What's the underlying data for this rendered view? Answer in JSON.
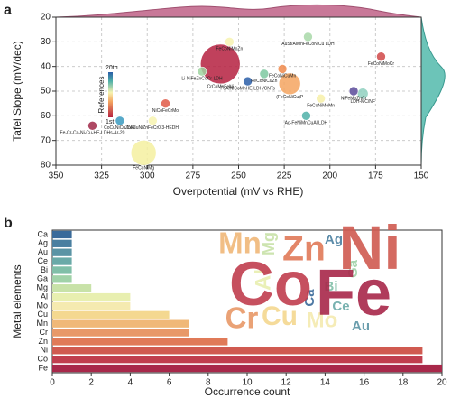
{
  "chart_data": [
    {
      "type": "bubble",
      "panel_label": "a",
      "x_label": "Overpotential (mV vs RHE)",
      "y_label": "Tafel Slope (mV/dec)",
      "xlim": [
        350,
        150
      ],
      "xticks": [
        350,
        325,
        300,
        275,
        250,
        225,
        200,
        175,
        150
      ],
      "ylim": [
        80,
        20
      ],
      "yticks": [
        20,
        30,
        40,
        50,
        60,
        70,
        80
      ],
      "grid": true,
      "colorbar": {
        "label": "References",
        "ticks": [
          "20th",
          "1st"
        ]
      },
      "x": [
        255,
        212,
        172,
        260,
        270,
        236,
        226,
        245,
        222,
        205,
        187,
        182,
        213,
        290,
        297,
        315,
        330,
        302
      ],
      "values": [
        30,
        28,
        36,
        39,
        42,
        43,
        41,
        46,
        47,
        53,
        50,
        51,
        60,
        55,
        62,
        62,
        64,
        75
      ],
      "sizes": [
        5,
        5,
        5,
        22,
        5,
        5,
        5,
        5,
        12,
        5,
        5,
        6,
        5,
        5,
        5,
        5,
        5,
        14
      ],
      "colors": [
        "#f7f3b0",
        "#a8d8a8",
        "#d04848",
        "#b5203f",
        "#9fd3a0",
        "#7ec8a0",
        "#f08a4b",
        "#2a5ea8",
        "#f4a560",
        "#f7f0a8",
        "#5a4a9a",
        "#8fd0c0",
        "#4fb0a8",
        "#e05a48",
        "#f7f3b0",
        "#3a9ac0",
        "#a02848",
        "#f4f0a0"
      ],
      "point_labels": [
        "FeCoNiMoZn",
        "AuSt/AlMnFeCoNiCu LDH",
        "FeCoNiMoCr",
        "CrCoMnFeNi",
        "Li-NiFeZnCoCr-LDH",
        "FeCoNiCuZn",
        "FeCoNiCuMn",
        "FeAlNiCoMnHE-LDH/CNTs",
        "(FeCoNiCu)P",
        "FeCoNiMoMn",
        "NiFeMoZnCr",
        "LDH-MC/NF",
        "Ag-FeNiMnCuAl LDH",
        "NiCoFeCrMo",
        "CoCuNiZnFeCr0.3-HEDH",
        "CoCuNiCuZnFe",
        "Fe-Cr-Co-Ni-Cu-HE-LDHs-Ar-20",
        "FeCoNiMg"
      ]
    },
    {
      "type": "hbar",
      "panel_label": "b",
      "x_label": "Occurrence count",
      "y_label": "Metal elements",
      "categories": [
        "Ca",
        "Ag",
        "Au",
        "Ce",
        "Bi",
        "Ga",
        "Mg",
        "Al",
        "Mo",
        "Cu",
        "Mn",
        "Cr",
        "Zn",
        "Ni",
        "Co",
        "Fe"
      ],
      "values": [
        1,
        1,
        1,
        1,
        1,
        1,
        2,
        4,
        4,
        6,
        7,
        7,
        9,
        19,
        19,
        20
      ],
      "colors": [
        "#3a6a9a",
        "#4a7fa0",
        "#5b94a5",
        "#6aaaa8",
        "#80bfa8",
        "#a0d2a8",
        "#c8e2a8",
        "#e8efb0",
        "#f5eab0",
        "#f4d890",
        "#f0b878",
        "#e89868",
        "#e07a58",
        "#d05a50",
        "#c03e4e",
        "#a8284a"
      ],
      "xlim": [
        0,
        20
      ],
      "xticks": [
        0,
        2,
        4,
        6,
        8,
        10,
        12,
        14,
        16,
        18,
        20
      ]
    }
  ]
}
